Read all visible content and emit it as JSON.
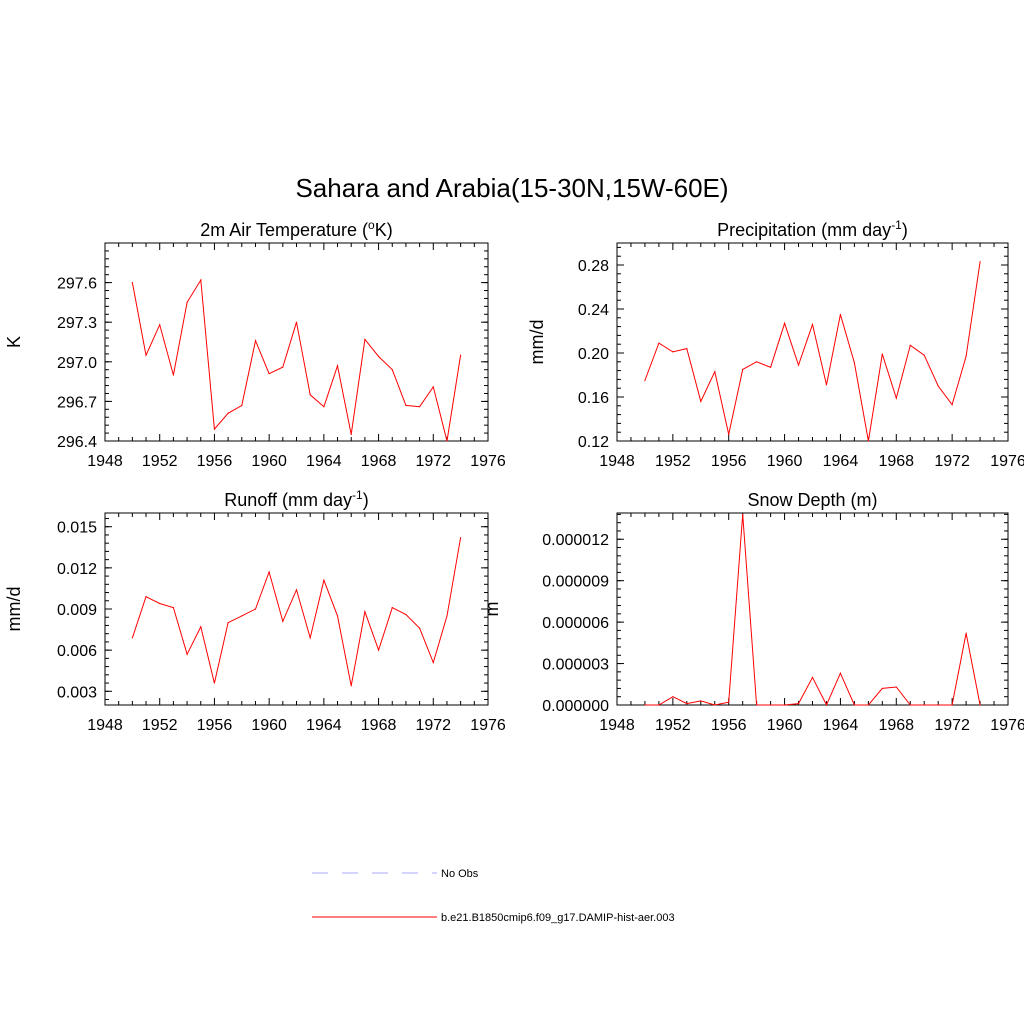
{
  "figure": {
    "title": "Sahara and Arabia(15-30N,15W-60E)",
    "legend": {
      "placement": "bottom-center",
      "entries": [
        {
          "label": "No Obs",
          "color": "#a8a8ff",
          "style": "dashed"
        },
        {
          "label": "b.e21.B1850cmip6.f09_g17.DAMIP-hist-aer.003",
          "color": "#ff0000",
          "style": "solid"
        }
      ]
    }
  },
  "chart_data": [
    {
      "type": "line",
      "title_text": "2m Air Temperature (",
      "title_sup": "o",
      "title_tail": "K)",
      "xlabel": "",
      "ylabel": "K",
      "xlim": [
        1948,
        1976
      ],
      "xticks": [
        1948,
        1952,
        1956,
        1960,
        1964,
        1968,
        1972,
        1976
      ],
      "ylim": [
        296.4,
        297.9
      ],
      "yticks": [
        "296.4",
        "296.7",
        "297.0",
        "297.3",
        "297.6"
      ],
      "grid": false,
      "color": "#ff0000",
      "series": [
        {
          "x": [
            1950,
            1951,
            1952,
            1953,
            1954,
            1955,
            1956,
            1957,
            1958,
            1959,
            1960,
            1961,
            1962,
            1963,
            1964,
            1965,
            1966,
            1967,
            1968,
            1969,
            1970,
            1971,
            1972,
            1973,
            1974
          ],
          "y": [
            297.6,
            297.05,
            297.28,
            296.9,
            297.45,
            297.62,
            296.49,
            296.61,
            296.67,
            297.16,
            296.91,
            296.96,
            297.3,
            296.75,
            296.66,
            296.97,
            296.45,
            297.17,
            297.04,
            296.94,
            296.67,
            296.66,
            296.81,
            296.4,
            297.05
          ]
        }
      ]
    },
    {
      "type": "line",
      "title_text": "Precipitation (mm day",
      "title_sup": "-1",
      "title_tail": ")",
      "xlabel": "",
      "ylabel": "mm/d",
      "xlim": [
        1948,
        1976
      ],
      "xticks": [
        1948,
        1952,
        1956,
        1960,
        1964,
        1968,
        1972,
        1976
      ],
      "ylim": [
        0.12,
        0.3
      ],
      "yticks": [
        "0.12",
        "0.16",
        "0.20",
        "0.24",
        "0.28"
      ],
      "grid": false,
      "color": "#ff0000",
      "series": [
        {
          "x": [
            1950,
            1951,
            1952,
            1953,
            1954,
            1955,
            1956,
            1957,
            1958,
            1959,
            1960,
            1961,
            1962,
            1963,
            1964,
            1965,
            1966,
            1967,
            1968,
            1969,
            1970,
            1971,
            1972,
            1973,
            1974
          ],
          "y": [
            0.175,
            0.209,
            0.201,
            0.204,
            0.156,
            0.183,
            0.126,
            0.185,
            0.192,
            0.187,
            0.227,
            0.189,
            0.226,
            0.171,
            0.235,
            0.191,
            0.12,
            0.199,
            0.159,
            0.207,
            0.198,
            0.17,
            0.153,
            0.197,
            0.283
          ]
        }
      ]
    },
    {
      "type": "line",
      "title_text": "Runoff (mm day",
      "title_sup": "-1",
      "title_tail": ")",
      "xlabel": "",
      "ylabel": "mm/d",
      "xlim": [
        1948,
        1976
      ],
      "xticks": [
        1948,
        1952,
        1956,
        1960,
        1964,
        1968,
        1972,
        1976
      ],
      "ylim": [
        0.002,
        0.016
      ],
      "yticks": [
        "0.003",
        "0.006",
        "0.009",
        "0.012",
        "0.015"
      ],
      "grid": false,
      "color": "#ff0000",
      "series": [
        {
          "x": [
            1950,
            1951,
            1952,
            1953,
            1954,
            1955,
            1956,
            1957,
            1958,
            1959,
            1960,
            1961,
            1962,
            1963,
            1964,
            1965,
            1966,
            1967,
            1968,
            1969,
            1970,
            1971,
            1972,
            1973,
            1974
          ],
          "y": [
            0.0069,
            0.0099,
            0.0094,
            0.0091,
            0.0057,
            0.0077,
            0.0036,
            0.008,
            0.0085,
            0.009,
            0.0117,
            0.0081,
            0.0104,
            0.0069,
            0.0111,
            0.0085,
            0.0034,
            0.0088,
            0.006,
            0.0091,
            0.0086,
            0.0076,
            0.0051,
            0.0085,
            0.0142
          ]
        }
      ]
    },
    {
      "type": "line",
      "title_text": "Snow Depth (m)",
      "title_sup": "",
      "title_tail": "",
      "xlabel": "",
      "ylabel": "m",
      "xlim": [
        1948,
        1976
      ],
      "xticks": [
        1948,
        1952,
        1956,
        1960,
        1964,
        1968,
        1972,
        1976
      ],
      "ylim": [
        0,
        1.39e-05
      ],
      "yticks": [
        "0.000000",
        "0.000003",
        "0.000006",
        "0.000009",
        "0.000012"
      ],
      "grid": false,
      "color": "#ff0000",
      "series": [
        {
          "x": [
            1950,
            1951,
            1952,
            1953,
            1954,
            1955,
            1956,
            1957,
            1958,
            1959,
            1960,
            1961,
            1962,
            1963,
            1964,
            1965,
            1966,
            1967,
            1968,
            1969,
            1970,
            1971,
            1972,
            1973,
            1974
          ],
          "y": [
            0,
            0,
            6e-07,
            1e-07,
            3e-07,
            0,
            2e-07,
            1.38e-05,
            0,
            0,
            0,
            1e-07,
            2e-06,
            0,
            2.3e-06,
            0,
            0,
            1.2e-06,
            1.3e-06,
            0,
            0,
            0,
            0,
            5.2e-06,
            0
          ]
        }
      ]
    }
  ]
}
